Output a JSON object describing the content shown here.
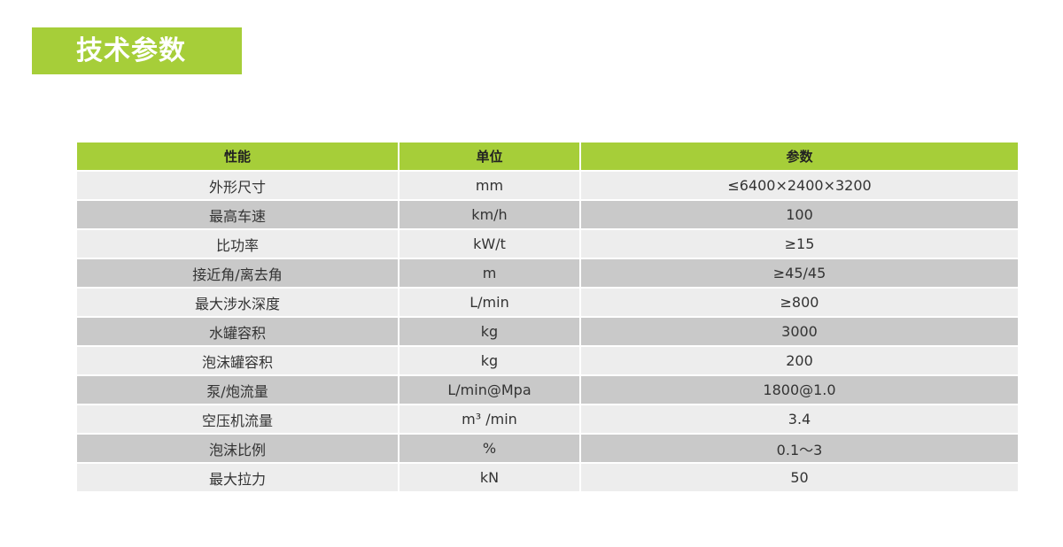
{
  "title": "技术参数",
  "table": {
    "headers": [
      "性能",
      "单位",
      "参数"
    ],
    "rows": [
      [
        "外形尺寸",
        "mm",
        "≤6400×2400×3200"
      ],
      [
        "最高车速",
        "km/h",
        "100"
      ],
      [
        "比功率",
        "kW/t",
        "≥15"
      ],
      [
        "接近角/离去角",
        "m",
        "≥45/45"
      ],
      [
        "最大涉水深度",
        "L/min",
        "≥800"
      ],
      [
        "水罐容积",
        "kg",
        "3000"
      ],
      [
        "泡沫罐容积",
        "kg",
        "200"
      ],
      [
        "泵/炮流量",
        "L/min@Mpa",
        "1800@1.0"
      ],
      [
        "空压机流量",
        "m³ /min",
        "3.4"
      ],
      [
        "泡沫比例",
        "%",
        "0.1～3"
      ],
      [
        "最大拉力",
        "kN",
        "50"
      ]
    ]
  },
  "colors": {
    "accent": "#a6ce39",
    "row_light": "#ededed",
    "row_dark": "#c9c9c9"
  }
}
